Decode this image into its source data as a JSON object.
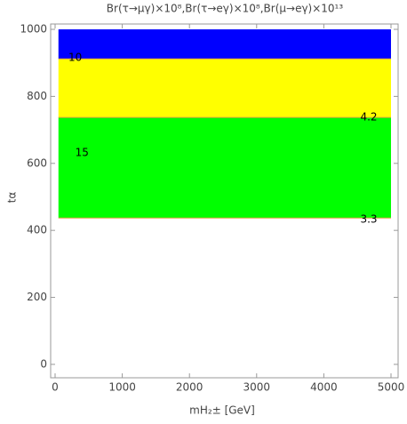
{
  "chart_data": {
    "type": "region",
    "title": "Br(τ→μγ)×10⁸,Br(τ→eγ)×10⁸,Br(μ→eγ)×10¹³",
    "xlabel": "mH₂± [GeV]",
    "ylabel": "tα",
    "xlim": [
      -66,
      5106
    ],
    "ylim": [
      -40,
      1016
    ],
    "xticks": [
      0,
      1000,
      2000,
      3000,
      4000,
      5000
    ],
    "yticks": [
      0,
      200,
      400,
      600,
      800,
      1000
    ],
    "bands": [
      {
        "color": "#0000ff",
        "x": [
          50,
          5000
        ],
        "y": [
          912,
          1000
        ]
      },
      {
        "color": "#ffff00",
        "x": [
          50,
          5000
        ],
        "y": [
          737,
          912
        ]
      },
      {
        "color": "#00ff00",
        "x": [
          50,
          5000
        ],
        "y": [
          437,
          737
        ]
      }
    ],
    "annotations": [
      {
        "text": "10",
        "x": 300,
        "y": 915
      },
      {
        "text": "4.2",
        "x": 4670,
        "y": 737
      },
      {
        "text": "15",
        "x": 400,
        "y": 631
      },
      {
        "text": "3.3",
        "x": 4670,
        "y": 432
      }
    ]
  }
}
